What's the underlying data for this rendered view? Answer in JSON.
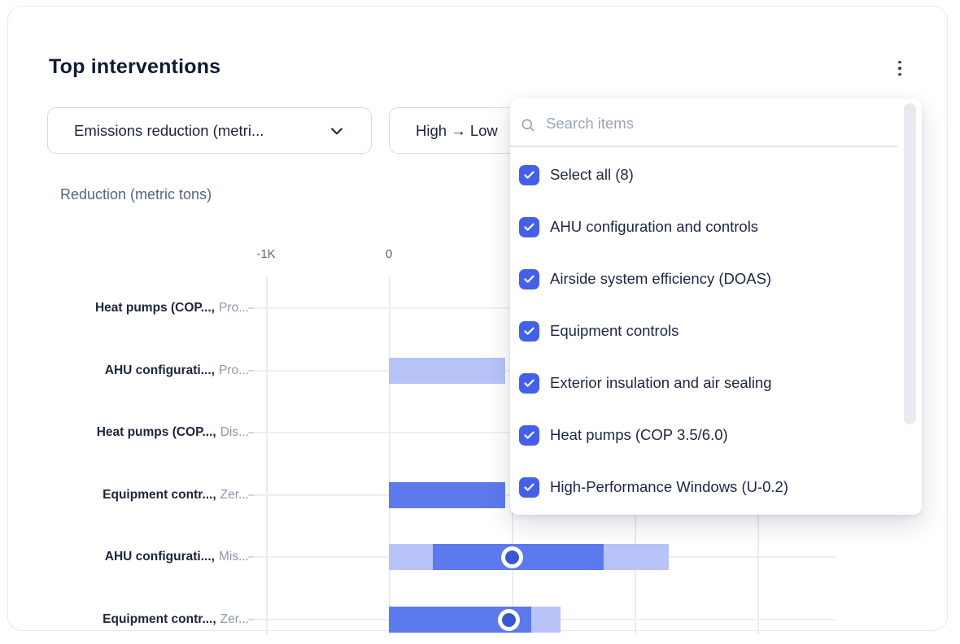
{
  "card": {
    "title": "Top interventions"
  },
  "filters": {
    "metric_select_value": "Emissions reduction (metri...",
    "sort_select_value": "High → Low"
  },
  "chart": {
    "type": "bar",
    "axis_title": "Reduction (metric tons)",
    "x_ticks": [
      {
        "label": "-1K",
        "value": -1000
      },
      {
        "label": "0",
        "value": 0
      }
    ],
    "x_gridline_values": [
      -1000,
      0,
      1000,
      2000,
      3000
    ],
    "rows": [
      {
        "label_bold": "Heat pumps (COP...,",
        "label_muted": "Pro...",
        "segments": [],
        "marker": null
      },
      {
        "label_bold": "AHU configurati...,",
        "label_muted": "Pro...",
        "segments": [
          {
            "from": 0,
            "to": 950,
            "tone": "light"
          }
        ],
        "marker": null
      },
      {
        "label_bold": "Heat pumps (COP...,",
        "label_muted": "Dis...",
        "segments": [],
        "marker": null
      },
      {
        "label_bold": "Equipment contr...,",
        "label_muted": "Zer...",
        "segments": [
          {
            "from": 0,
            "to": 950,
            "tone": "dark"
          }
        ],
        "marker": null
      },
      {
        "label_bold": "AHU configurati...,",
        "label_muted": "Mis...",
        "segments": [
          {
            "from": 0,
            "to": 360,
            "tone": "light"
          },
          {
            "from": 360,
            "to": 1750,
            "tone": "dark"
          },
          {
            "from": 1750,
            "to": 2280,
            "tone": "light"
          }
        ],
        "marker": 1000
      },
      {
        "label_bold": "Equipment contr...,",
        "label_muted": "Zer...",
        "segments": [
          {
            "from": 0,
            "to": 1160,
            "tone": "dark"
          },
          {
            "from": 1160,
            "to": 1400,
            "tone": "light"
          }
        ],
        "marker": 980
      }
    ]
  },
  "dropdown": {
    "search_placeholder": "Search items",
    "items": [
      {
        "label": "Select all (8)",
        "checked": true
      },
      {
        "label": "AHU configuration and controls",
        "checked": true
      },
      {
        "label": "Airside system efficiency (DOAS)",
        "checked": true
      },
      {
        "label": "Equipment controls",
        "checked": true
      },
      {
        "label": "Exterior insulation and air sealing",
        "checked": true
      },
      {
        "label": "Heat pumps (COP 3.5/6.0)",
        "checked": true
      },
      {
        "label": "High-Performance Windows (U-0.2)",
        "checked": true
      }
    ]
  },
  "colors": {
    "bar_dark": "#5c79ee",
    "bar_light": "#b8c4f8",
    "marker_inner": "#3a57d2",
    "checkbox": "#4560e8",
    "accent_text": "#101b33"
  }
}
